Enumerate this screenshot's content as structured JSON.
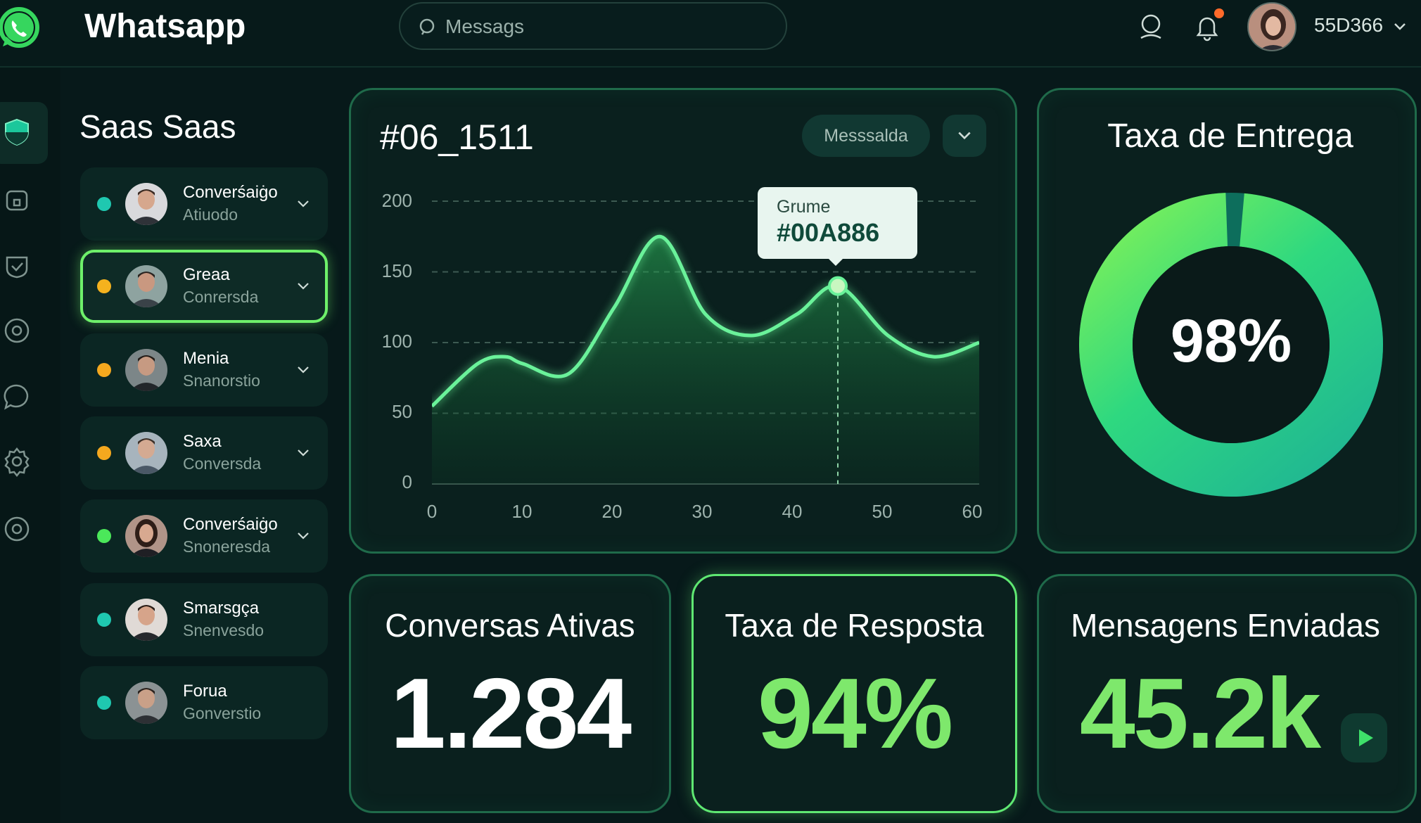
{
  "app": {
    "title": "Whatsapp"
  },
  "search": {
    "placeholder": "Messags"
  },
  "header": {
    "user_code": "55D366"
  },
  "sidebar": {
    "title": "Saas Saas",
    "contacts": [
      {
        "name": "Converśaiġo",
        "subtitle": "Atiuodo",
        "status_color": "#1fc8b0"
      },
      {
        "name": "Greaa",
        "subtitle": "Conrersda",
        "status_color": "#f5b21e"
      },
      {
        "name": "Menia",
        "subtitle": "Snanorstio",
        "status_color": "#f5a81e"
      },
      {
        "name": "Saxa",
        "subtitle": "Conversda",
        "status_color": "#f5a81e"
      },
      {
        "name": "Converśaiġo",
        "subtitle": "Snoneresda",
        "status_color": "#4be85a"
      },
      {
        "name": "Smarsgça",
        "subtitle": "Snenvesdo",
        "status_color": "#1fc8b0"
      },
      {
        "name": "Forua",
        "subtitle": "Gonverstio",
        "status_color": "#1fc8b0"
      }
    ]
  },
  "chart_card": {
    "title": "#06_1511",
    "dropdown_label": "Messsalda",
    "tooltip_label": "Grume",
    "tooltip_value": "#00A886"
  },
  "chart_data": {
    "type": "area",
    "x": [
      0,
      5,
      8,
      10,
      15,
      20,
      25,
      30,
      35,
      40,
      44.5,
      50,
      55,
      60
    ],
    "y": [
      55,
      85,
      90,
      85,
      78,
      125,
      175,
      120,
      105,
      120,
      140,
      105,
      90,
      100
    ],
    "xticks": [
      "0",
      "10",
      "20",
      "30",
      "40",
      "50",
      "60"
    ],
    "yticks": [
      "200",
      "150",
      "100",
      "50",
      "0"
    ],
    "xlim": [
      0,
      60
    ],
    "ylim": [
      0,
      200
    ],
    "highlight_x": 44.5,
    "grid": true,
    "line_color": "#6af29a"
  },
  "delivery": {
    "title": "Taxa de Entrega",
    "value": "98%",
    "percent": 0.98
  },
  "stats": {
    "active": {
      "title": "Conversas Ativas",
      "value": "1.284"
    },
    "response": {
      "title": "Taxa de Resposta",
      "value": "94%"
    },
    "sent": {
      "title": "Mensagens Enviadas",
      "value": "45.2k"
    }
  },
  "colors": {
    "accent": "#6af06a",
    "background": "#07191a",
    "card": "#0a201e"
  }
}
